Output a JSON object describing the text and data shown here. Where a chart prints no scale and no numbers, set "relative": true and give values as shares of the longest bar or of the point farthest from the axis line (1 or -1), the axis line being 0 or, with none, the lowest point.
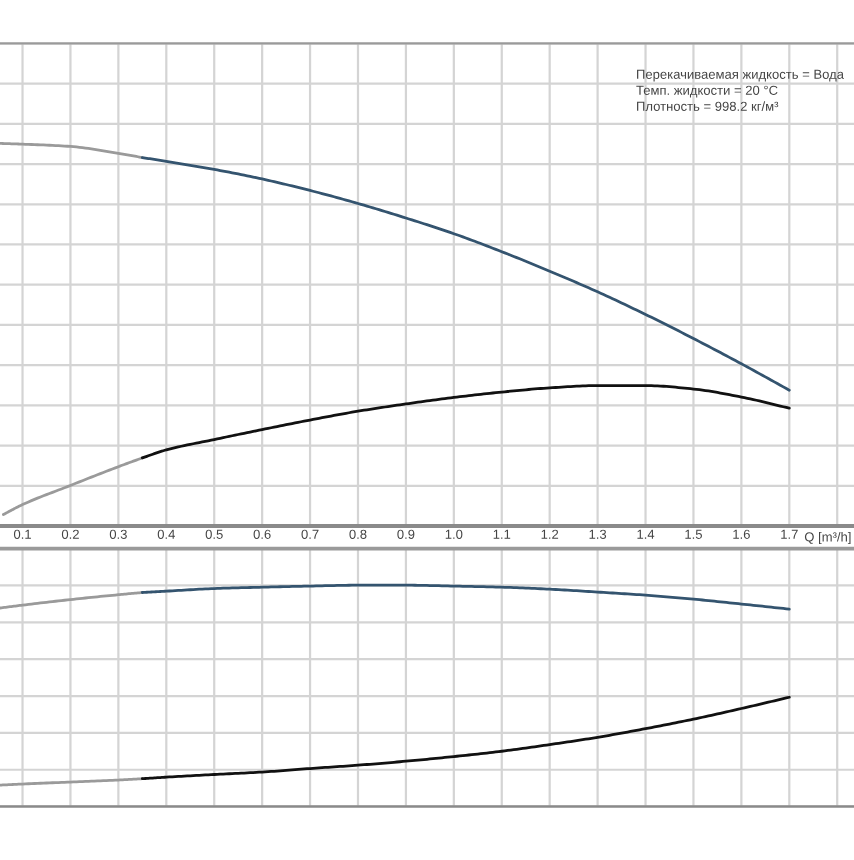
{
  "chart_data": [
    {
      "type": "line",
      "relative": true,
      "xlabel": "Q [m³/h]",
      "xlim": [
        0.053,
        1.835
      ],
      "xticks": [
        0.1,
        0.2,
        0.3,
        0.4,
        0.5,
        0.6,
        0.7,
        0.8,
        0.9,
        {
          "value": 1.0,
          "label": "1.0"
        },
        1.1,
        1.2,
        1.3,
        1.4,
        1.5,
        1.6,
        1.7,
        {
          "value": 1.8,
          "label": null
        }
      ],
      "grid": true,
      "tick_labels": "x",
      "annotations": [
        "Перекачиваемая жидкость = Вода",
        "Темп. жидкости = 20 °C",
        "Плотность = 998.2 кг/м³"
      ],
      "series": [
        {
          "color": "#9a9a9a",
          "x": [
            0.053,
            0.1,
            0.2,
            0.3,
            0.35
          ],
          "values": [
            1.0,
            0.998,
            0.992,
            0.974,
            0.963
          ]
        },
        {
          "color": "#34546f",
          "x": [
            0.35,
            0.4,
            0.5,
            0.6,
            0.7,
            0.8,
            0.9,
            1.0,
            1.1,
            1.2,
            1.3,
            1.4,
            1.5,
            1.6,
            1.7
          ],
          "values": [
            0.963,
            0.953,
            0.932,
            0.907,
            0.877,
            0.843,
            0.805,
            0.764,
            0.717,
            0.666,
            0.612,
            0.553,
            0.49,
            0.424,
            0.355
          ]
        },
        {
          "color": "#9a9a9a",
          "x": [
            0.06,
            0.1,
            0.2,
            0.3,
            0.35
          ],
          "values": [
            0.03,
            0.056,
            0.106,
            0.155,
            0.178
          ]
        },
        {
          "color": "#111111",
          "x": [
            0.35,
            0.4,
            0.5,
            0.6,
            0.7,
            0.8,
            0.9,
            1.0,
            1.1,
            1.2,
            1.3,
            1.4,
            1.5,
            1.6,
            1.7
          ],
          "values": [
            0.178,
            0.199,
            0.226,
            0.252,
            0.277,
            0.3,
            0.319,
            0.336,
            0.35,
            0.361,
            0.367,
            0.367,
            0.358,
            0.337,
            0.308
          ]
        }
      ]
    },
    {
      "type": "line",
      "relative": true,
      "xlim": [
        0.053,
        1.835
      ],
      "xticks": [
        0.1,
        0.2,
        0.3,
        0.4,
        0.5,
        0.6,
        0.7,
        0.8,
        0.9,
        1.0,
        1.1,
        1.2,
        1.3,
        1.4,
        1.5,
        1.6,
        1.7,
        1.8
      ],
      "grid": true,
      "tick_labels": false,
      "series": [
        {
          "color": "#9a9a9a",
          "x": [
            0.053,
            0.1,
            0.2,
            0.3,
            0.35
          ],
          "values": [
            0.897,
            0.91,
            0.935,
            0.957,
            0.967
          ]
        },
        {
          "color": "#34546f",
          "x": [
            0.35,
            0.4,
            0.5,
            0.6,
            0.7,
            0.8,
            0.9,
            1.0,
            1.1,
            1.2,
            1.3,
            1.4,
            1.5,
            1.6,
            1.7
          ],
          "values": [
            0.967,
            0.973,
            0.985,
            0.991,
            0.996,
            1.0,
            1.0,
            0.996,
            0.991,
            0.982,
            0.969,
            0.955,
            0.937,
            0.915,
            0.892
          ]
        },
        {
          "color": "#9a9a9a",
          "x": [
            0.053,
            0.1,
            0.2,
            0.3,
            0.35
          ],
          "values": [
            0.097,
            0.102,
            0.111,
            0.12,
            0.126
          ]
        },
        {
          "color": "#111111",
          "x": [
            0.35,
            0.4,
            0.5,
            0.6,
            0.7,
            0.8,
            0.9,
            1.0,
            1.1,
            1.2,
            1.3,
            1.4,
            1.5,
            1.6,
            1.7
          ],
          "values": [
            0.126,
            0.133,
            0.145,
            0.156,
            0.172,
            0.187,
            0.205,
            0.226,
            0.25,
            0.28,
            0.313,
            0.352,
            0.395,
            0.443,
            0.494
          ]
        }
      ]
    }
  ]
}
